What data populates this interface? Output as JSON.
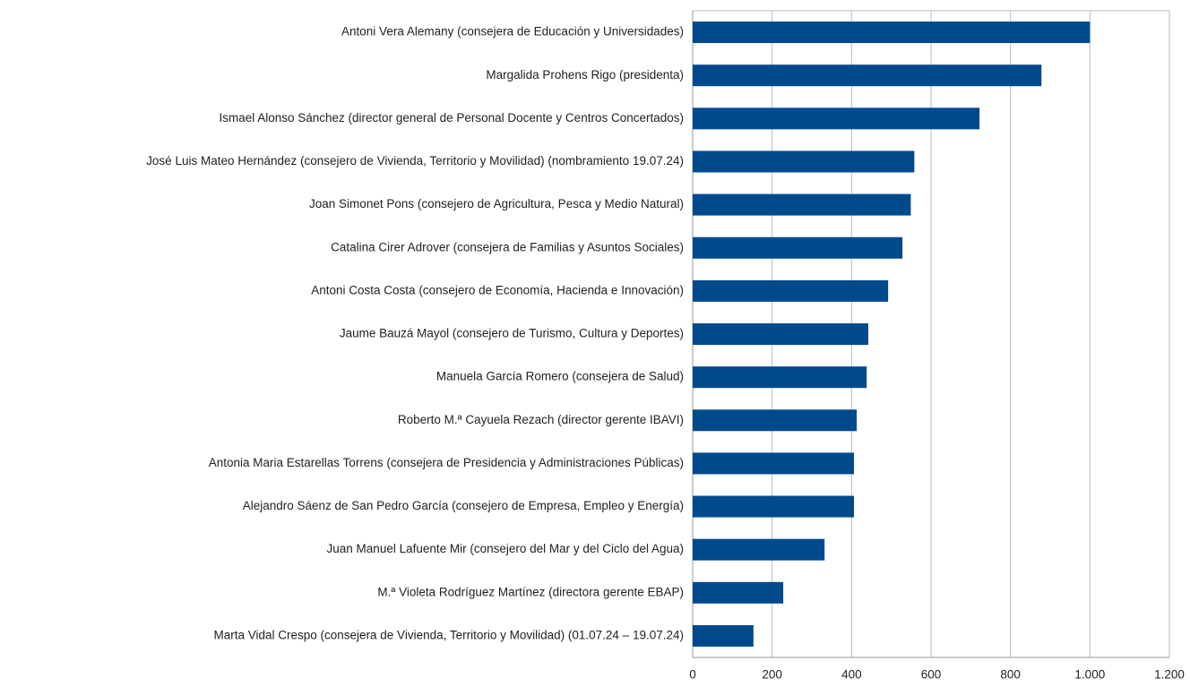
{
  "chart_data": {
    "type": "hbar",
    "color": "#004a8c",
    "grid": true,
    "categories": [
      "Antoni Vera Alemany (consejera de Educación y Universidades)",
      "Margalida Prohens Rigo (presidenta)",
      "Ismael Alonso Sánchez (director general de Personal Docente y Centros Concertados)",
      "José Luis Mateo Hernández (consejero de Vivienda, Territorio y Movilidad) (nombramiento 19.07.24)",
      "Joan Simonet Pons (consejero de Agricultura, Pesca y Medio Natural)",
      "Catalina Cirer Adrover (consejera de Familias y Asuntos Sociales)",
      "Antoni Costa Costa (consejero de Economía, Hacienda e Innovación)",
      "Jaume Bauzá Mayol (consejero de Turismo, Cultura y Deportes)",
      "Manuela García Romero (consejera de Salud)",
      "Roberto M.ª Cayuela Rezach (director gerente IBAVI)",
      "Antonia Maria Estarellas Torrens (consejera de Presidencia y Administraciones Públicas)",
      "Alejandro Sáenz de San Pedro García (consejero de Empresa, Empleo y Energía)",
      "Juan Manuel Lafuente Mir (consejero del Mar y del Ciclo del Agua)",
      "M.ª Violeta Rodríguez Martínez (directora gerente EBAP)",
      "Marta Vidal Crespo (consejera de Vivienda, Territorio y Movilidad) (01.07.24 – 19.07.24)"
    ],
    "values": [
      1000,
      878,
      722,
      558,
      549,
      528,
      492,
      442,
      438,
      413,
      406,
      406,
      332,
      228,
      153
    ],
    "xlim": [
      0,
      1200
    ],
    "xticks": [
      0,
      200,
      400,
      600,
      800,
      {
        "value": 1000,
        "label": "1.000"
      },
      {
        "value": 1200,
        "label": "1.200"
      }
    ]
  }
}
